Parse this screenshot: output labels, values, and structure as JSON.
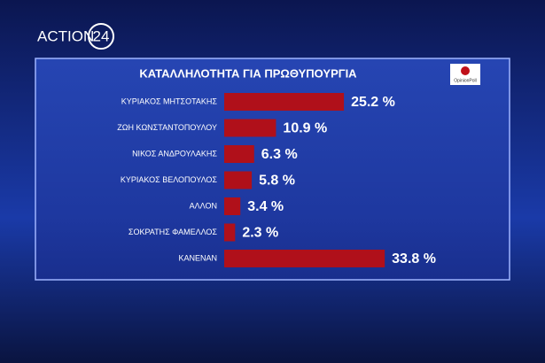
{
  "brand": "ACTION",
  "brand_number": "24",
  "source": "OpinionPoll",
  "chart_data": {
    "type": "bar",
    "orientation": "horizontal",
    "title": "ΚΑΤΑΛΛΗΛΟΤΗΤΑ ΓΙΑ ΠΡΩΘΥΠΟΥΡΓΙΑ",
    "categories": [
      "ΚΥΡΙΑΚΟΣ ΜΗΤΣΟΤΑΚΗΣ",
      "ΖΩΗ ΚΩΝΣΤΑΝΤΟΠΟΥΛΟΥ",
      "ΝΙΚΟΣ ΑΝΔΡΟΥΛΑΚΗΣ",
      "ΚΥΡΙΑΚΟΣ ΒΕΛΟΠΟΥΛΟΣ",
      "ΑΛΛΟΝ",
      "ΣΟΚΡΑΤΗΣ ΦΑΜΕΛΛΟΣ",
      "ΚΑΝΕΝΑΝ"
    ],
    "values": [
      25.2,
      10.9,
      6.3,
      5.8,
      3.4,
      2.3,
      33.8
    ],
    "value_labels": [
      "25.2 %",
      "10.9 %",
      "6.3 %",
      "5.8 %",
      "3.4 %",
      "2.3 %",
      "33.8 %"
    ],
    "color": "#b0101a"
  }
}
